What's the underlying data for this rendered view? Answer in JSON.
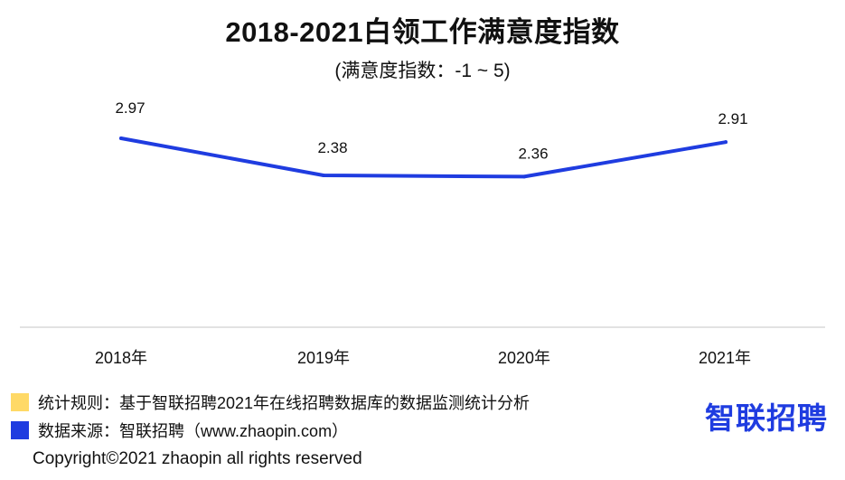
{
  "title": "2018-2021白领工作满意度指数",
  "subtitle": "(满意度指数：-1 ~ 5)",
  "chart_data": {
    "type": "line",
    "categories": [
      "2018年",
      "2019年",
      "2020年",
      "2021年"
    ],
    "series": [
      {
        "values": [
          2.97,
          2.38,
          2.36,
          2.91
        ],
        "labels": [
          "2.97",
          "2.38",
          "2.36",
          "2.91"
        ]
      }
    ],
    "line_color": "#1f3ce0",
    "ylim": [
      -1,
      5
    ],
    "grid": false
  },
  "notes": [
    {
      "text": "统计规则：基于智联招聘2021年在线招聘数据库的数据监测统计分析",
      "color": "#ffd966"
    },
    {
      "text": "数据来源：智联招聘（www.zhaopin.com）",
      "color": "#1f3ce0"
    }
  ],
  "brand": {
    "text": "智联招聘",
    "color": "#1f3ce0"
  },
  "copyright": "Copyright©2021 zhaopin all rights reserved"
}
